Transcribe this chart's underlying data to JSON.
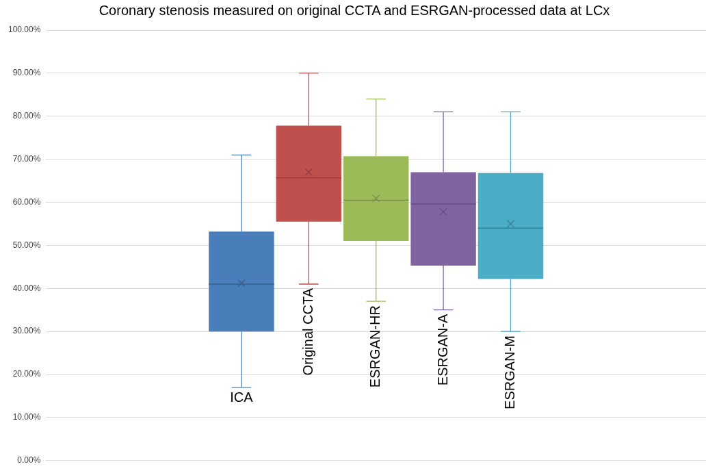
{
  "chart_data": {
    "type": "box",
    "title": "Coronary stenosis measured on original CCTA and ESRGAN-processed data at LCx",
    "categories": [
      null
    ],
    "series": [
      {
        "name": "ICA",
        "color": "#4a7ebb",
        "boxes": [
          {
            "low": 17,
            "q1": 30,
            "median": 41,
            "q3": 53.2,
            "high": 71,
            "mean": 41.2
          }
        ]
      },
      {
        "name": "Original CCTA",
        "color": "#c0504d",
        "boxes": [
          {
            "low": 41,
            "q1": 55.5,
            "median": 65.7,
            "q3": 77.8,
            "high": 90,
            "mean": 67
          }
        ]
      },
      {
        "name": "ESRGAN-HR",
        "color": "#9bbb59",
        "boxes": [
          {
            "low": 37,
            "q1": 51,
            "median": 60.5,
            "q3": 70.7,
            "high": 84,
            "mean": 60.9
          }
        ]
      },
      {
        "name": "ESRGAN-A",
        "color": "#8064a2",
        "boxes": [
          {
            "low": 35,
            "q1": 45.3,
            "median": 59.6,
            "q3": 67,
            "high": 81,
            "mean": 57.8
          }
        ]
      },
      {
        "name": "ESRGAN-M",
        "color": "#4bacc6",
        "boxes": [
          {
            "low": 30,
            "q1": 42.2,
            "median": 54,
            "q3": 66.8,
            "high": 81,
            "mean": 55
          }
        ]
      }
    ],
    "ylim": [
      0,
      100
    ],
    "yticks": [
      {
        "value": 0,
        "label": "0.00%"
      },
      {
        "value": 10,
        "label": "10.00%"
      },
      {
        "value": 20,
        "label": "20.00%"
      },
      {
        "value": 30,
        "label": "30.00%"
      },
      {
        "value": 40,
        "label": "40.00%"
      },
      {
        "value": 50,
        "label": "50.00%"
      },
      {
        "value": 60,
        "label": "60.00%"
      },
      {
        "value": 70,
        "label": "70.00%"
      },
      {
        "value": 80,
        "label": "80.00%"
      },
      {
        "value": 90,
        "label": "90.00%"
      },
      {
        "value": 100,
        "label": "100.00%"
      }
    ],
    "grid": "y"
  }
}
